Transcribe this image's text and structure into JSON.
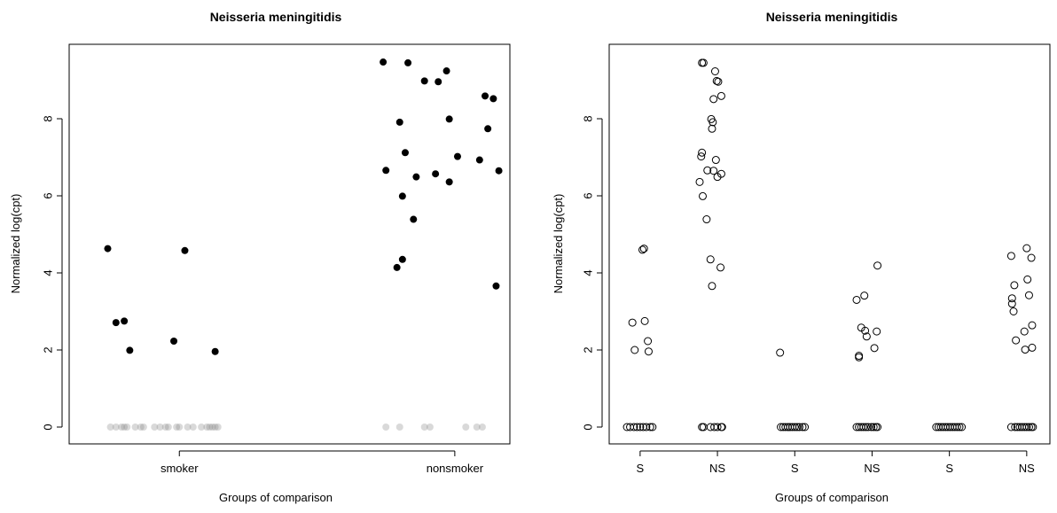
{
  "chart_data": [
    {
      "type": "scatter",
      "title": "Neisseria meningitidis",
      "xlabel": "Groups of comparison",
      "ylabel": "Normalized log(cpt)",
      "categories": [
        "smoker",
        "nonsmoker"
      ],
      "ylim": [
        0,
        9.6
      ],
      "yticks": [
        0,
        2,
        4,
        6,
        8
      ],
      "grid": false,
      "series": [
        {
          "marker": "filled-circle",
          "color": "#000000",
          "points": [
            {
              "x": 0.74,
              "y": 4.63
            },
            {
              "x": 0.77,
              "y": 2.71
            },
            {
              "x": 0.8,
              "y": 2.75
            },
            {
              "x": 0.82,
              "y": 1.99
            },
            {
              "x": 0.98,
              "y": 2.23
            },
            {
              "x": 1.02,
              "y": 4.58
            },
            {
              "x": 1.13,
              "y": 1.96
            },
            {
              "x": 1.74,
              "y": 9.47
            },
            {
              "x": 1.75,
              "y": 6.66
            },
            {
              "x": 1.79,
              "y": 4.14
            },
            {
              "x": 1.8,
              "y": 7.91
            },
            {
              "x": 1.81,
              "y": 5.99
            },
            {
              "x": 1.81,
              "y": 4.35
            },
            {
              "x": 1.82,
              "y": 7.12
            },
            {
              "x": 1.83,
              "y": 9.45
            },
            {
              "x": 1.85,
              "y": 5.39
            },
            {
              "x": 1.86,
              "y": 6.49
            },
            {
              "x": 1.89,
              "y": 8.98
            },
            {
              "x": 1.93,
              "y": 6.57
            },
            {
              "x": 1.94,
              "y": 8.96
            },
            {
              "x": 1.97,
              "y": 9.24
            },
            {
              "x": 1.98,
              "y": 7.99
            },
            {
              "x": 1.98,
              "y": 6.36
            },
            {
              "x": 2.01,
              "y": 7.02
            },
            {
              "x": 2.09,
              "y": 6.93
            },
            {
              "x": 2.11,
              "y": 8.59
            },
            {
              "x": 2.12,
              "y": 7.74
            },
            {
              "x": 2.14,
              "y": 8.52
            },
            {
              "x": 2.15,
              "y": 3.66
            },
            {
              "x": 2.16,
              "y": 6.65
            }
          ]
        },
        {
          "marker": "translucent-circle",
          "color": "#808080",
          "points": [
            {
              "x": 0.75,
              "y": 0
            },
            {
              "x": 0.77,
              "y": 0
            },
            {
              "x": 0.79,
              "y": 0
            },
            {
              "x": 0.8,
              "y": 0
            },
            {
              "x": 0.81,
              "y": 0
            },
            {
              "x": 0.84,
              "y": 0
            },
            {
              "x": 0.86,
              "y": 0
            },
            {
              "x": 0.87,
              "y": 0
            },
            {
              "x": 0.91,
              "y": 0
            },
            {
              "x": 0.93,
              "y": 0
            },
            {
              "x": 0.95,
              "y": 0
            },
            {
              "x": 0.96,
              "y": 0
            },
            {
              "x": 0.99,
              "y": 0
            },
            {
              "x": 1.0,
              "y": 0
            },
            {
              "x": 1.03,
              "y": 0
            },
            {
              "x": 1.05,
              "y": 0
            },
            {
              "x": 1.08,
              "y": 0
            },
            {
              "x": 1.1,
              "y": 0
            },
            {
              "x": 1.11,
              "y": 0
            },
            {
              "x": 1.12,
              "y": 0
            },
            {
              "x": 1.13,
              "y": 0
            },
            {
              "x": 1.14,
              "y": 0
            },
            {
              "x": 1.75,
              "y": 0
            },
            {
              "x": 1.8,
              "y": 0
            },
            {
              "x": 1.89,
              "y": 0
            },
            {
              "x": 1.91,
              "y": 0
            },
            {
              "x": 2.04,
              "y": 0
            },
            {
              "x": 2.08,
              "y": 0
            },
            {
              "x": 2.1,
              "y": 0
            }
          ]
        }
      ]
    },
    {
      "type": "scatter",
      "title": "Neisseria meningitidis",
      "xlabel": "Groups of comparison",
      "ylabel": "Normalized log(cpt)",
      "categories": [
        "S",
        "NS",
        "S",
        "NS",
        "S",
        "NS"
      ],
      "ylim": [
        0,
        9.6
      ],
      "yticks": [
        0,
        2,
        4,
        6,
        8
      ],
      "grid": false,
      "series": [
        {
          "marker": "open-circle",
          "color": "#000000",
          "points": [
            {
              "x": 0.9,
              "y": 2.71
            },
            {
              "x": 0.93,
              "y": 2.0
            },
            {
              "x": 1.03,
              "y": 4.6
            },
            {
              "x": 1.05,
              "y": 4.63
            },
            {
              "x": 1.06,
              "y": 2.75
            },
            {
              "x": 1.1,
              "y": 2.23
            },
            {
              "x": 1.11,
              "y": 1.96
            },
            {
              "x": 0.83,
              "y": 0
            },
            {
              "x": 0.87,
              "y": 0
            },
            {
              "x": 0.92,
              "y": 0
            },
            {
              "x": 0.96,
              "y": 0
            },
            {
              "x": 1.0,
              "y": 0
            },
            {
              "x": 1.04,
              "y": 0
            },
            {
              "x": 1.08,
              "y": 0
            },
            {
              "x": 1.13,
              "y": 0
            },
            {
              "x": 1.16,
              "y": 0
            },
            {
              "x": 1.8,
              "y": 9.45
            },
            {
              "x": 1.82,
              "y": 9.45
            },
            {
              "x": 1.97,
              "y": 9.23
            },
            {
              "x": 1.99,
              "y": 8.98
            },
            {
              "x": 2.01,
              "y": 8.96
            },
            {
              "x": 2.05,
              "y": 8.59
            },
            {
              "x": 1.95,
              "y": 8.51
            },
            {
              "x": 1.92,
              "y": 7.99
            },
            {
              "x": 1.94,
              "y": 7.91
            },
            {
              "x": 1.93,
              "y": 7.74
            },
            {
              "x": 1.8,
              "y": 7.12
            },
            {
              "x": 1.79,
              "y": 7.02
            },
            {
              "x": 1.98,
              "y": 6.93
            },
            {
              "x": 1.87,
              "y": 6.66
            },
            {
              "x": 1.95,
              "y": 6.65
            },
            {
              "x": 2.05,
              "y": 6.57
            },
            {
              "x": 2.0,
              "y": 6.49
            },
            {
              "x": 1.77,
              "y": 6.36
            },
            {
              "x": 1.81,
              "y": 5.99
            },
            {
              "x": 1.86,
              "y": 5.39
            },
            {
              "x": 1.91,
              "y": 4.35
            },
            {
              "x": 2.04,
              "y": 4.14
            },
            {
              "x": 1.93,
              "y": 3.66
            },
            {
              "x": 1.8,
              "y": 0
            },
            {
              "x": 1.82,
              "y": 0
            },
            {
              "x": 1.91,
              "y": 0
            },
            {
              "x": 1.96,
              "y": 0
            },
            {
              "x": 2.0,
              "y": 0
            },
            {
              "x": 2.05,
              "y": 0
            },
            {
              "x": 2.06,
              "y": 0
            },
            {
              "x": 2.81,
              "y": 1.93
            },
            {
              "x": 2.82,
              "y": 0
            },
            {
              "x": 2.85,
              "y": 0
            },
            {
              "x": 2.88,
              "y": 0
            },
            {
              "x": 2.91,
              "y": 0
            },
            {
              "x": 2.94,
              "y": 0
            },
            {
              "x": 2.97,
              "y": 0
            },
            {
              "x": 3.0,
              "y": 0
            },
            {
              "x": 3.03,
              "y": 0
            },
            {
              "x": 3.06,
              "y": 0
            },
            {
              "x": 3.1,
              "y": 0
            },
            {
              "x": 3.13,
              "y": 0
            },
            {
              "x": 3.8,
              "y": 3.3
            },
            {
              "x": 3.9,
              "y": 3.41
            },
            {
              "x": 3.86,
              "y": 2.58
            },
            {
              "x": 3.91,
              "y": 2.5
            },
            {
              "x": 3.93,
              "y": 2.35
            },
            {
              "x": 4.06,
              "y": 2.48
            },
            {
              "x": 4.03,
              "y": 2.05
            },
            {
              "x": 4.07,
              "y": 4.19
            },
            {
              "x": 3.83,
              "y": 1.85
            },
            {
              "x": 3.83,
              "y": 1.81
            },
            {
              "x": 3.8,
              "y": 0
            },
            {
              "x": 3.83,
              "y": 0
            },
            {
              "x": 3.86,
              "y": 0
            },
            {
              "x": 3.89,
              "y": 0
            },
            {
              "x": 3.92,
              "y": 0
            },
            {
              "x": 3.95,
              "y": 0
            },
            {
              "x": 3.99,
              "y": 0
            },
            {
              "x": 4.02,
              "y": 0
            },
            {
              "x": 4.05,
              "y": 0
            },
            {
              "x": 4.07,
              "y": 0
            },
            {
              "x": 4.83,
              "y": 0
            },
            {
              "x": 4.86,
              "y": 0
            },
            {
              "x": 4.89,
              "y": 0
            },
            {
              "x": 4.92,
              "y": 0
            },
            {
              "x": 4.95,
              "y": 0
            },
            {
              "x": 4.98,
              "y": 0
            },
            {
              "x": 5.01,
              "y": 0
            },
            {
              "x": 5.04,
              "y": 0
            },
            {
              "x": 5.07,
              "y": 0
            },
            {
              "x": 5.1,
              "y": 0
            },
            {
              "x": 5.13,
              "y": 0
            },
            {
              "x": 5.16,
              "y": 0
            },
            {
              "x": 5.8,
              "y": 4.44
            },
            {
              "x": 5.81,
              "y": 3.34
            },
            {
              "x": 5.81,
              "y": 3.2
            },
            {
              "x": 5.83,
              "y": 3.0
            },
            {
              "x": 5.84,
              "y": 3.68
            },
            {
              "x": 5.86,
              "y": 2.25
            },
            {
              "x": 5.97,
              "y": 2.48
            },
            {
              "x": 5.98,
              "y": 2.01
            },
            {
              "x": 6.0,
              "y": 4.64
            },
            {
              "x": 6.01,
              "y": 3.83
            },
            {
              "x": 6.03,
              "y": 3.42
            },
            {
              "x": 6.06,
              "y": 4.39
            },
            {
              "x": 6.07,
              "y": 2.64
            },
            {
              "x": 6.07,
              "y": 2.06
            },
            {
              "x": 5.8,
              "y": 0
            },
            {
              "x": 5.85,
              "y": 0
            },
            {
              "x": 5.88,
              "y": 0
            },
            {
              "x": 5.91,
              "y": 0
            },
            {
              "x": 5.94,
              "y": 0
            },
            {
              "x": 5.97,
              "y": 0
            },
            {
              "x": 6.0,
              "y": 0
            },
            {
              "x": 6.03,
              "y": 0
            },
            {
              "x": 6.06,
              "y": 0
            },
            {
              "x": 6.08,
              "y": 0
            }
          ]
        }
      ]
    }
  ]
}
